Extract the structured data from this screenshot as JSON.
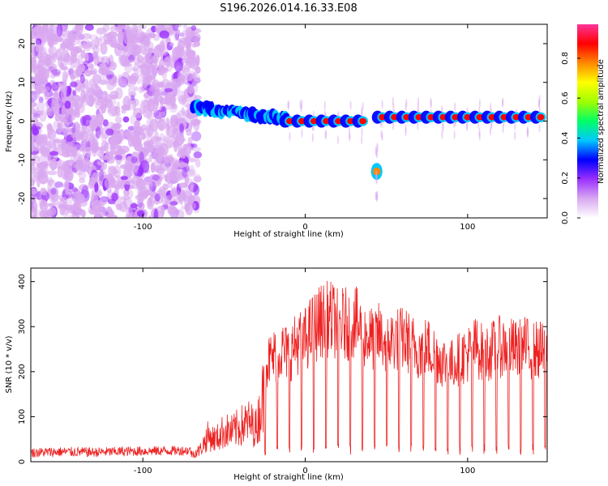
{
  "chart_data": [
    {
      "type": "heatmap",
      "title": "S196.2026.014.16.33.E08",
      "xlabel": "Height of straight line (km)",
      "ylabel": "Frequency (Hz)",
      "xlim": [
        -169,
        149
      ],
      "ylim": [
        -25,
        25
      ],
      "xticks": [
        -100,
        0,
        100
      ],
      "yticks": [
        20,
        10,
        0,
        -10,
        -20
      ],
      "colorbar": {
        "label": "Normalized spectral amplitude",
        "range": [
          0,
          0.97
        ],
        "ticks": [
          "0.0",
          "0.2",
          "0.4",
          "0.6",
          "0.8"
        ],
        "tick_values": [
          0.0,
          0.2,
          0.4,
          0.6,
          0.8
        ],
        "colors": [
          "#ffffff",
          "#d9a8f0",
          "#9b30ff",
          "#0000ff",
          "#00c8ff",
          "#00ff66",
          "#a0ff00",
          "#ffff00",
          "#ff8800",
          "#ff0000",
          "#ff3399"
        ]
      },
      "features": [
        {
          "name": "noise region",
          "x_range": [
            -169,
            -66
          ],
          "y_range": [
            -25,
            25
          ],
          "level": 0.1
        },
        {
          "name": "drifting tone",
          "x": [
            -69,
            -60,
            -50,
            -40,
            -30,
            -20,
            -10
          ],
          "y": [
            4,
            3,
            2.5,
            2,
            1.5,
            1,
            0.5
          ],
          "level": 0.25
        },
        {
          "name": "carrier line",
          "x_range": [
            -10,
            40
          ],
          "y": 0,
          "level": 0.85
        },
        {
          "name": "carrier line",
          "x_range": [
            47,
            149
          ],
          "y": 1,
          "level": 0.85
        },
        {
          "name": "offset tone",
          "x": 44,
          "y": -13,
          "level": 0.8
        }
      ]
    },
    {
      "type": "line",
      "xlabel": "Height of straight line (km)",
      "ylabel": "SNR (10 * v/v)",
      "xlim": [
        -169,
        149
      ],
      "ylim": [
        0,
        430
      ],
      "xticks": [
        -100,
        0,
        100
      ],
      "yticks": [
        0,
        100,
        200,
        300,
        400
      ],
      "series": [
        {
          "name": "SNR",
          "color": "#ee2222",
          "x": [
            -169,
            -150,
            -130,
            -110,
            -90,
            -70,
            -65,
            -60,
            -55,
            -50,
            -45,
            -40,
            -35,
            -30,
            -25,
            -20,
            -15,
            -10,
            -5,
            0,
            5,
            10,
            15,
            20,
            25,
            30,
            35,
            40,
            45,
            50,
            55,
            60,
            65,
            70,
            75,
            80,
            85,
            90,
            95,
            100,
            105,
            110,
            115,
            120,
            125,
            130,
            135,
            140,
            145,
            149
          ],
          "y": [
            20,
            22,
            21,
            23,
            24,
            25,
            40,
            90,
            80,
            110,
            105,
            125,
            140,
            120,
            260,
            280,
            300,
            290,
            320,
            330,
            360,
            380,
            385,
            375,
            370,
            380,
            350,
            330,
            340,
            320,
            330,
            330,
            320,
            300,
            310,
            290,
            270,
            260,
            280,
            290,
            310,
            290,
            300,
            310,
            310,
            300,
            310,
            300,
            300,
            280
          ],
          "dips_from_x": -25,
          "dip_spacing": 7.5,
          "dip_floor": 15,
          "notes": "Envelope of SNR; signal shows periodic deep dips to near 15-40 every ~7.5 km from about -25 km onward."
        }
      ]
    }
  ]
}
